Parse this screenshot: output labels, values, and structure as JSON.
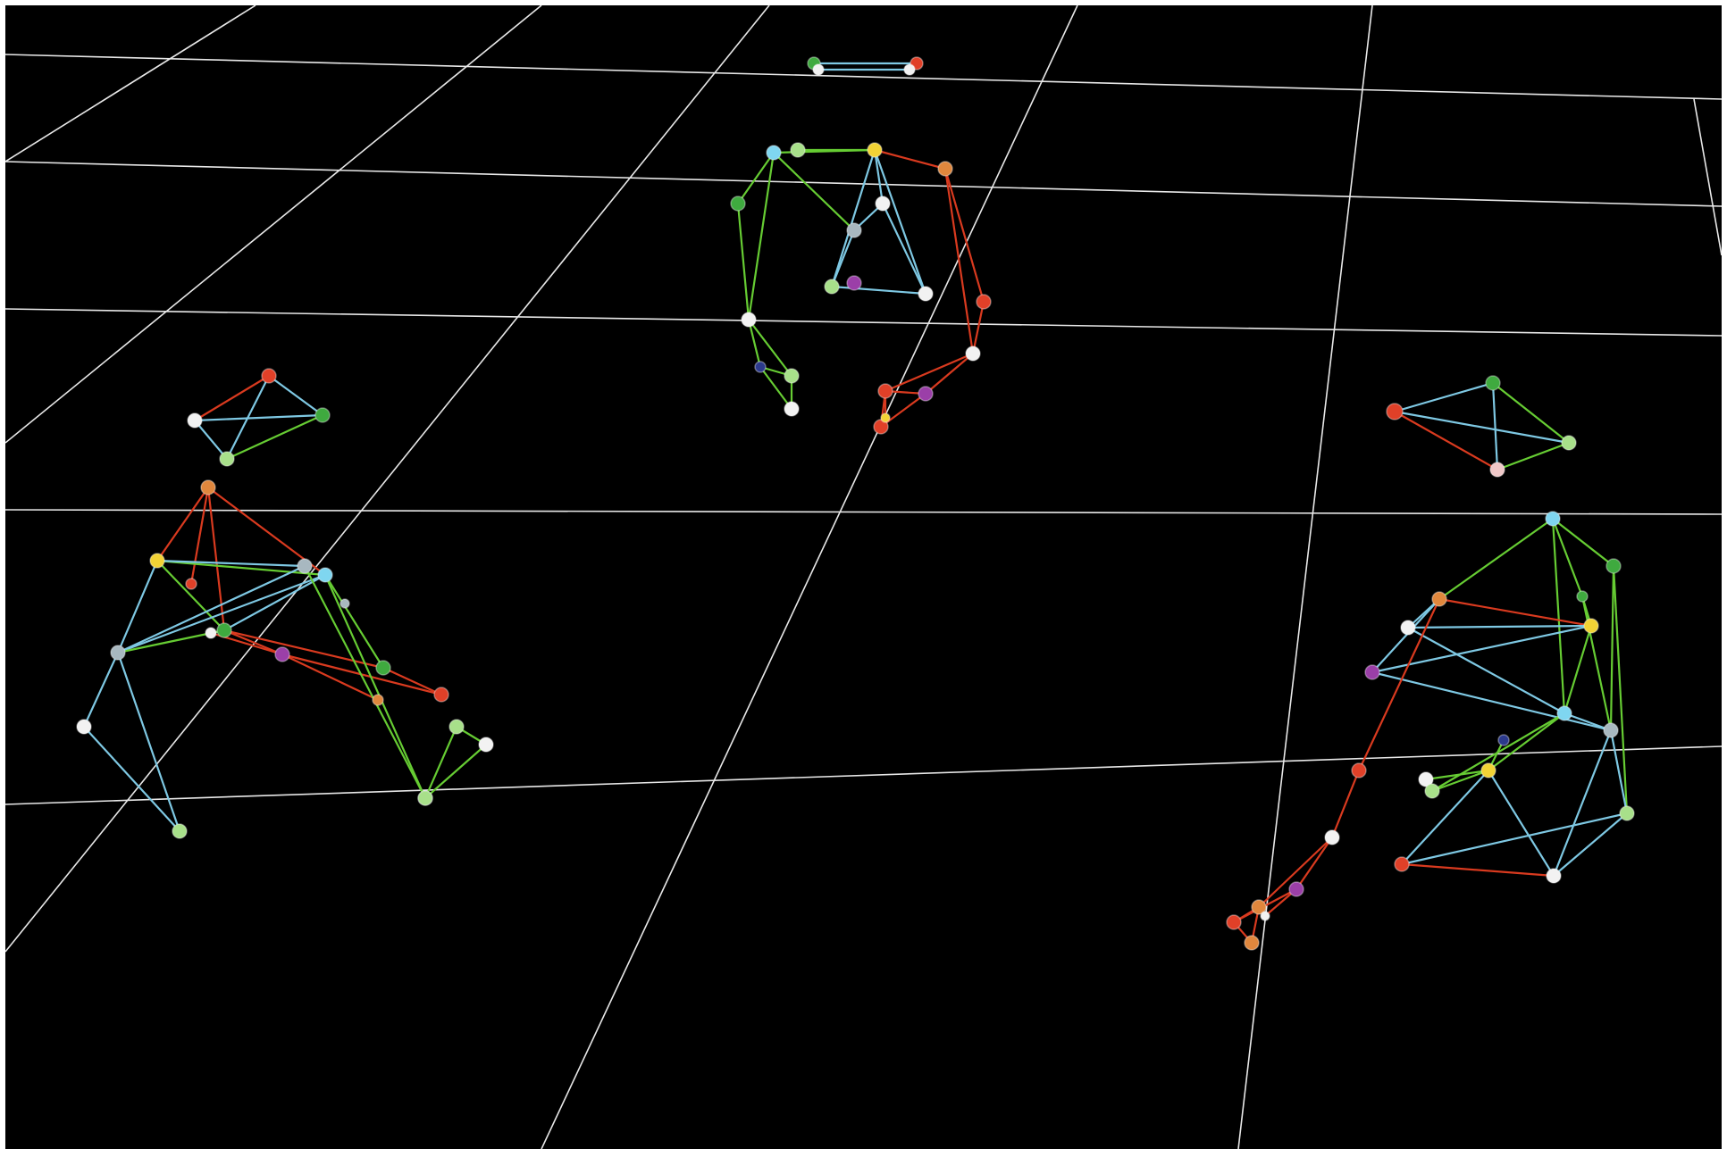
{
  "scene": {
    "background": "#000000",
    "floor_grid_color": "#e8e8e8",
    "bone_colors": {
      "left": "#7ec8e3",
      "right": "#d93a1f",
      "center": "#66cc33"
    },
    "joint_colors": {
      "red": "#e04028",
      "orange": "#e0873d",
      "yellow": "#f2d335",
      "green": "#3faa3f",
      "lightgreen": "#a8e08a",
      "cyan": "#7fd6f0",
      "white": "#f2f2f2",
      "pink": "#f0c8c8",
      "purple": "#9b3fa8",
      "navy": "#2c3a8c",
      "gray": "#a8b8c0",
      "blue": "#5a8fd8"
    },
    "markers_visible": true,
    "skeletons_visible": 4
  }
}
